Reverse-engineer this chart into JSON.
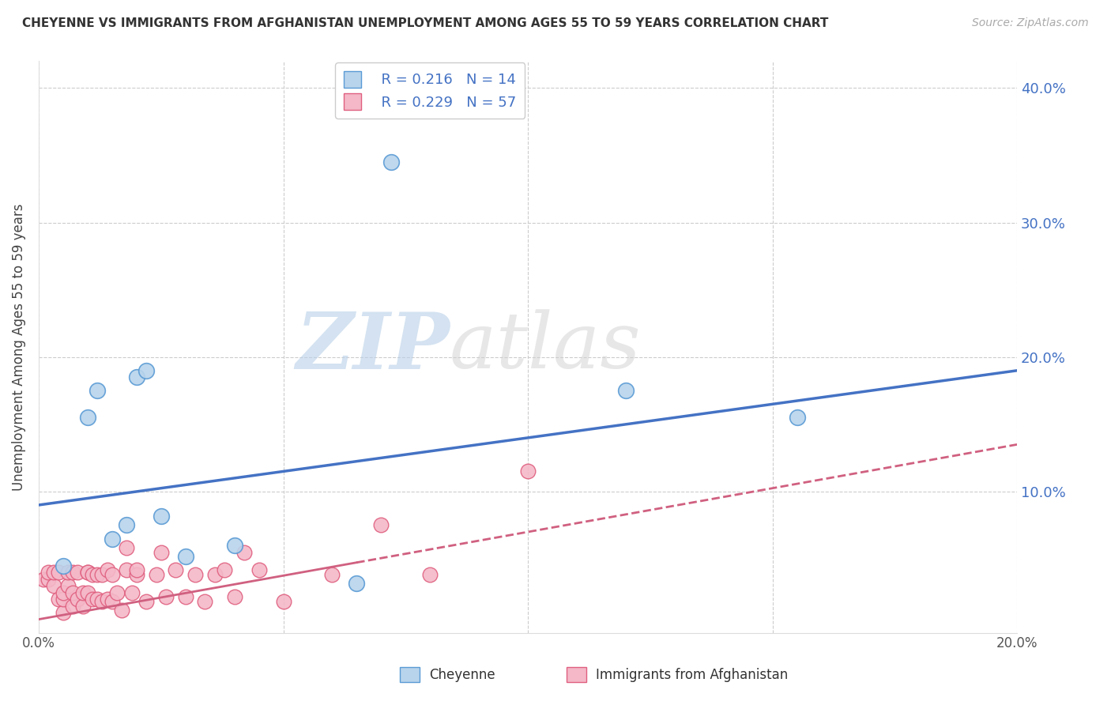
{
  "title": "CHEYENNE VS IMMIGRANTS FROM AFGHANISTAN UNEMPLOYMENT AMONG AGES 55 TO 59 YEARS CORRELATION CHART",
  "source": "Source: ZipAtlas.com",
  "ylabel": "Unemployment Among Ages 55 to 59 years",
  "xlabel_cheyenne": "Cheyenne",
  "xlabel_afghanistan": "Immigrants from Afghanistan",
  "xlim": [
    0.0,
    0.2
  ],
  "ylim": [
    -0.005,
    0.42
  ],
  "xticks": [
    0.0,
    0.05,
    0.1,
    0.15,
    0.2
  ],
  "xtick_labels": [
    "0.0%",
    "",
    "",
    "",
    "20.0%"
  ],
  "yticks": [
    0.1,
    0.2,
    0.3,
    0.4
  ],
  "ytick_labels": [
    "10.0%",
    "20.0%",
    "30.0%",
    "40.0%"
  ],
  "cheyenne_color": "#b8d4ec",
  "cheyenne_edge_color": "#5b9bd5",
  "afghanistan_color": "#f4b8c8",
  "afghanistan_edge_color": "#e06080",
  "trend_cheyenne_color": "#4472c4",
  "trend_afghanistan_color": "#d06080",
  "legend_R_cheyenne": "R = 0.216",
  "legend_N_cheyenne": "N = 14",
  "legend_R_afghanistan": "R = 0.229",
  "legend_N_afghanistan": "N = 57",
  "watermark_zip": "ZIP",
  "watermark_atlas": "atlas",
  "cheyenne_trend_x0": 0.0,
  "cheyenne_trend_y0": 0.09,
  "cheyenne_trend_x1": 0.2,
  "cheyenne_trend_y1": 0.19,
  "afghanistan_trend_x0": 0.0,
  "afghanistan_trend_y0": 0.005,
  "afghanistan_trend_x1": 0.2,
  "afghanistan_trend_y1": 0.135,
  "cheyenne_x": [
    0.005,
    0.01,
    0.012,
    0.015,
    0.018,
    0.02,
    0.022,
    0.025,
    0.03,
    0.04,
    0.065,
    0.12,
    0.155,
    0.072
  ],
  "cheyenne_y": [
    0.045,
    0.155,
    0.175,
    0.065,
    0.075,
    0.185,
    0.19,
    0.082,
    0.052,
    0.06,
    0.032,
    0.175,
    0.155,
    0.345
  ],
  "afghanistan_x": [
    0.001,
    0.002,
    0.002,
    0.003,
    0.003,
    0.004,
    0.004,
    0.005,
    0.005,
    0.005,
    0.006,
    0.006,
    0.007,
    0.007,
    0.007,
    0.008,
    0.008,
    0.009,
    0.009,
    0.01,
    0.01,
    0.01,
    0.011,
    0.011,
    0.012,
    0.012,
    0.013,
    0.013,
    0.014,
    0.014,
    0.015,
    0.015,
    0.016,
    0.017,
    0.018,
    0.018,
    0.019,
    0.02,
    0.02,
    0.022,
    0.024,
    0.025,
    0.026,
    0.028,
    0.03,
    0.032,
    0.034,
    0.036,
    0.038,
    0.04,
    0.042,
    0.045,
    0.05,
    0.06,
    0.07,
    0.08,
    0.1
  ],
  "afghanistan_y": [
    0.035,
    0.035,
    0.04,
    0.03,
    0.04,
    0.02,
    0.04,
    0.01,
    0.02,
    0.025,
    0.03,
    0.04,
    0.015,
    0.025,
    0.04,
    0.02,
    0.04,
    0.015,
    0.025,
    0.025,
    0.04,
    0.04,
    0.02,
    0.038,
    0.02,
    0.038,
    0.018,
    0.038,
    0.042,
    0.02,
    0.018,
    0.038,
    0.025,
    0.012,
    0.042,
    0.058,
    0.025,
    0.038,
    0.042,
    0.018,
    0.038,
    0.055,
    0.022,
    0.042,
    0.022,
    0.038,
    0.018,
    0.038,
    0.042,
    0.022,
    0.055,
    0.042,
    0.018,
    0.038,
    0.075,
    0.038,
    0.115
  ]
}
